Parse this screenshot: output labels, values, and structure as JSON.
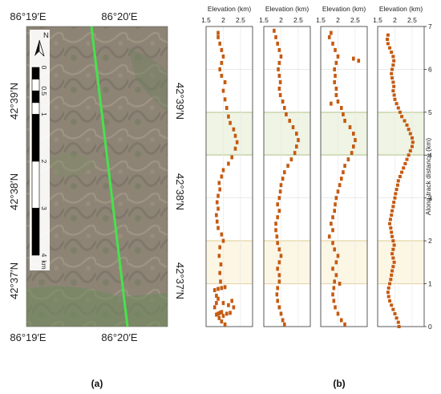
{
  "panel_a": {
    "letter": "(a)",
    "lon_labels_top": [
      "86°19′E",
      "86°20′E"
    ],
    "lon_labels_bottom": [
      "86°19′E",
      "86°20′E"
    ],
    "lat_labels_left": [
      "42°39′N",
      "42°38′N",
      "42°37′N"
    ],
    "lat_labels_right": [
      "42°39′N",
      "42°38′N",
      "42°37′N"
    ],
    "north_label": "N",
    "scale_labels": [
      "0",
      "0.5",
      "1",
      "2",
      "3",
      "4"
    ],
    "scale_unit": "km",
    "track_color": "#47e24a"
  },
  "panel_b": {
    "letter": "(b)",
    "y_axis_label": "Along-track distance (km)",
    "y_ticks": [
      "0",
      "1",
      "2",
      "3",
      "4",
      "5",
      "6",
      "7"
    ],
    "marker_color": "#c55a11",
    "green_band_color": "#a4c46a",
    "yellow_band_color": "#f0cf6f"
  },
  "chart_data": {
    "type": "scatter",
    "x_label": "Elevation (km)",
    "x_ticks": [
      "1.5",
      "2",
      "2.5"
    ],
    "xlim": [
      1.5,
      2.85
    ],
    "ylim": [
      0,
      7
    ],
    "ylabel": "Along-track distance (km)",
    "bands": [
      {
        "kind": "green",
        "from": 4.0,
        "to": 5.0
      },
      {
        "kind": "yellow",
        "from": 1.0,
        "to": 2.0
      }
    ],
    "grid": true,
    "series": [
      {
        "points": [
          [
            2.05,
            0.05
          ],
          [
            1.95,
            0.12
          ],
          [
            1.88,
            0.2
          ],
          [
            2.0,
            0.25
          ],
          [
            1.8,
            0.28
          ],
          [
            1.85,
            0.3
          ],
          [
            1.9,
            0.32
          ],
          [
            1.95,
            0.34
          ],
          [
            2.1,
            0.3
          ],
          [
            2.2,
            0.32
          ],
          [
            1.75,
            0.45
          ],
          [
            1.8,
            0.55
          ],
          [
            1.85,
            0.65
          ],
          [
            1.8,
            0.72
          ],
          [
            2.0,
            0.55
          ],
          [
            2.15,
            0.5
          ],
          [
            2.3,
            0.45
          ],
          [
            2.25,
            0.6
          ],
          [
            1.75,
            0.85
          ],
          [
            1.85,
            0.88
          ],
          [
            1.95,
            0.9
          ],
          [
            2.05,
            0.92
          ],
          [
            1.92,
            1.05
          ],
          [
            1.9,
            1.25
          ],
          [
            1.93,
            1.45
          ],
          [
            1.88,
            1.65
          ],
          [
            1.9,
            1.85
          ],
          [
            2.0,
            2.0
          ],
          [
            1.95,
            2.15
          ],
          [
            1.85,
            2.3
          ],
          [
            1.82,
            2.45
          ],
          [
            1.8,
            2.6
          ],
          [
            1.85,
            2.75
          ],
          [
            1.82,
            2.9
          ],
          [
            1.85,
            3.05
          ],
          [
            1.9,
            3.2
          ],
          [
            1.88,
            3.35
          ],
          [
            1.95,
            3.5
          ],
          [
            2.0,
            3.65
          ],
          [
            2.15,
            3.8
          ],
          [
            2.25,
            3.95
          ],
          [
            2.35,
            4.15
          ],
          [
            2.4,
            4.3
          ],
          [
            2.35,
            4.45
          ],
          [
            2.3,
            4.6
          ],
          [
            2.2,
            4.75
          ],
          [
            2.15,
            4.9
          ],
          [
            2.1,
            5.1
          ],
          [
            2.05,
            5.3
          ],
          [
            2.0,
            5.5
          ],
          [
            2.05,
            5.7
          ],
          [
            1.95,
            5.85
          ],
          [
            1.9,
            6.0
          ],
          [
            1.95,
            6.15
          ],
          [
            2.0,
            6.3
          ],
          [
            1.95,
            6.45
          ],
          [
            1.9,
            6.6
          ],
          [
            1.85,
            6.75
          ],
          [
            1.85,
            6.85
          ]
        ]
      },
      {
        "points": [
          [
            2.1,
            0.05
          ],
          [
            2.05,
            0.15
          ],
          [
            2.0,
            0.3
          ],
          [
            1.95,
            0.45
          ],
          [
            1.9,
            0.6
          ],
          [
            1.88,
            0.75
          ],
          [
            1.9,
            0.9
          ],
          [
            1.95,
            1.05
          ],
          [
            1.95,
            1.2
          ],
          [
            1.9,
            1.35
          ],
          [
            1.95,
            1.5
          ],
          [
            2.0,
            1.65
          ],
          [
            1.95,
            1.8
          ],
          [
            1.9,
            1.95
          ],
          [
            1.88,
            2.1
          ],
          [
            1.85,
            2.25
          ],
          [
            1.85,
            2.4
          ],
          [
            1.9,
            2.55
          ],
          [
            1.95,
            2.7
          ],
          [
            1.9,
            2.85
          ],
          [
            1.95,
            3.0
          ],
          [
            1.98,
            3.15
          ],
          [
            2.0,
            3.3
          ],
          [
            2.05,
            3.45
          ],
          [
            2.1,
            3.6
          ],
          [
            2.2,
            3.75
          ],
          [
            2.3,
            3.9
          ],
          [
            2.4,
            4.05
          ],
          [
            2.45,
            4.2
          ],
          [
            2.5,
            4.35
          ],
          [
            2.45,
            4.5
          ],
          [
            2.35,
            4.65
          ],
          [
            2.25,
            4.8
          ],
          [
            2.15,
            4.95
          ],
          [
            2.1,
            5.1
          ],
          [
            2.05,
            5.25
          ],
          [
            1.98,
            5.4
          ],
          [
            1.95,
            5.55
          ],
          [
            1.98,
            5.7
          ],
          [
            1.95,
            5.85
          ],
          [
            1.92,
            6.0
          ],
          [
            1.95,
            6.15
          ],
          [
            2.0,
            6.3
          ],
          [
            1.95,
            6.45
          ],
          [
            1.9,
            6.6
          ],
          [
            1.85,
            6.75
          ],
          [
            1.8,
            6.9
          ]
        ]
      },
      {
        "points": [
          [
            2.2,
            0.05
          ],
          [
            2.1,
            0.15
          ],
          [
            2.0,
            0.3
          ],
          [
            1.92,
            0.45
          ],
          [
            1.88,
            0.6
          ],
          [
            1.85,
            0.75
          ],
          [
            1.88,
            0.9
          ],
          [
            1.9,
            1.05
          ],
          [
            1.95,
            1.2
          ],
          [
            1.85,
            1.35
          ],
          [
            1.95,
            1.5
          ],
          [
            2.0,
            1.65
          ],
          [
            1.9,
            1.8
          ],
          [
            1.85,
            1.95
          ],
          [
            1.75,
            2.1
          ],
          [
            1.85,
            2.25
          ],
          [
            1.8,
            2.4
          ],
          [
            1.85,
            2.55
          ],
          [
            1.9,
            2.7
          ],
          [
            1.92,
            2.85
          ],
          [
            1.95,
            3.0
          ],
          [
            2.0,
            3.15
          ],
          [
            2.05,
            3.3
          ],
          [
            2.1,
            3.45
          ],
          [
            2.15,
            3.6
          ],
          [
            2.2,
            3.75
          ],
          [
            2.3,
            3.9
          ],
          [
            2.4,
            4.05
          ],
          [
            2.45,
            4.2
          ],
          [
            2.5,
            4.35
          ],
          [
            2.45,
            4.5
          ],
          [
            2.35,
            4.65
          ],
          [
            2.2,
            4.8
          ],
          [
            2.15,
            4.95
          ],
          [
            2.1,
            5.1
          ],
          [
            2.0,
            5.25
          ],
          [
            1.95,
            5.4
          ],
          [
            1.95,
            5.55
          ],
          [
            1.9,
            5.7
          ],
          [
            1.92,
            5.85
          ],
          [
            1.9,
            6.0
          ],
          [
            1.95,
            6.15
          ],
          [
            2.0,
            6.3
          ],
          [
            1.92,
            6.45
          ],
          [
            1.85,
            6.6
          ],
          [
            1.75,
            6.75
          ],
          [
            1.8,
            6.85
          ],
          [
            2.45,
            6.25
          ],
          [
            2.6,
            6.2
          ],
          [
            1.8,
            5.2
          ],
          [
            2.05,
            1.0
          ]
        ]
      },
      {
        "points": [
          [
            2.12,
            0.0
          ],
          [
            2.1,
            0.1
          ],
          [
            2.05,
            0.2
          ],
          [
            2.0,
            0.3
          ],
          [
            1.95,
            0.4
          ],
          [
            1.9,
            0.5
          ],
          [
            1.85,
            0.6
          ],
          [
            1.82,
            0.7
          ],
          [
            1.8,
            0.8
          ],
          [
            1.82,
            0.9
          ],
          [
            1.85,
            1.0
          ],
          [
            1.88,
            1.1
          ],
          [
            1.9,
            1.2
          ],
          [
            1.92,
            1.3
          ],
          [
            1.95,
            1.4
          ],
          [
            1.98,
            1.5
          ],
          [
            1.95,
            1.6
          ],
          [
            1.92,
            1.7
          ],
          [
            1.95,
            1.8
          ],
          [
            1.98,
            1.9
          ],
          [
            1.95,
            2.0
          ],
          [
            1.92,
            2.1
          ],
          [
            1.9,
            2.2
          ],
          [
            1.88,
            2.3
          ],
          [
            1.85,
            2.4
          ],
          [
            1.87,
            2.5
          ],
          [
            1.9,
            2.6
          ],
          [
            1.92,
            2.7
          ],
          [
            1.95,
            2.8
          ],
          [
            1.97,
            2.9
          ],
          [
            2.0,
            3.0
          ],
          [
            2.02,
            3.1
          ],
          [
            2.05,
            3.2
          ],
          [
            2.08,
            3.3
          ],
          [
            2.1,
            3.4
          ],
          [
            2.15,
            3.5
          ],
          [
            2.2,
            3.6
          ],
          [
            2.25,
            3.7
          ],
          [
            2.3,
            3.8
          ],
          [
            2.35,
            3.9
          ],
          [
            2.4,
            4.0
          ],
          [
            2.45,
            4.1
          ],
          [
            2.5,
            4.2
          ],
          [
            2.52,
            4.3
          ],
          [
            2.5,
            4.4
          ],
          [
            2.45,
            4.5
          ],
          [
            2.4,
            4.6
          ],
          [
            2.35,
            4.7
          ],
          [
            2.28,
            4.8
          ],
          [
            2.2,
            4.9
          ],
          [
            2.15,
            5.0
          ],
          [
            2.1,
            5.1
          ],
          [
            2.05,
            5.2
          ],
          [
            2.0,
            5.3
          ],
          [
            1.98,
            5.4
          ],
          [
            1.95,
            5.5
          ],
          [
            1.97,
            5.6
          ],
          [
            1.95,
            5.7
          ],
          [
            1.92,
            5.8
          ],
          [
            1.9,
            5.9
          ],
          [
            1.92,
            6.0
          ],
          [
            1.95,
            6.1
          ],
          [
            1.97,
            6.2
          ],
          [
            1.95,
            6.3
          ],
          [
            1.9,
            6.4
          ],
          [
            1.85,
            6.5
          ],
          [
            1.8,
            6.6
          ],
          [
            1.78,
            6.7
          ],
          [
            1.8,
            6.8
          ]
        ]
      }
    ]
  }
}
